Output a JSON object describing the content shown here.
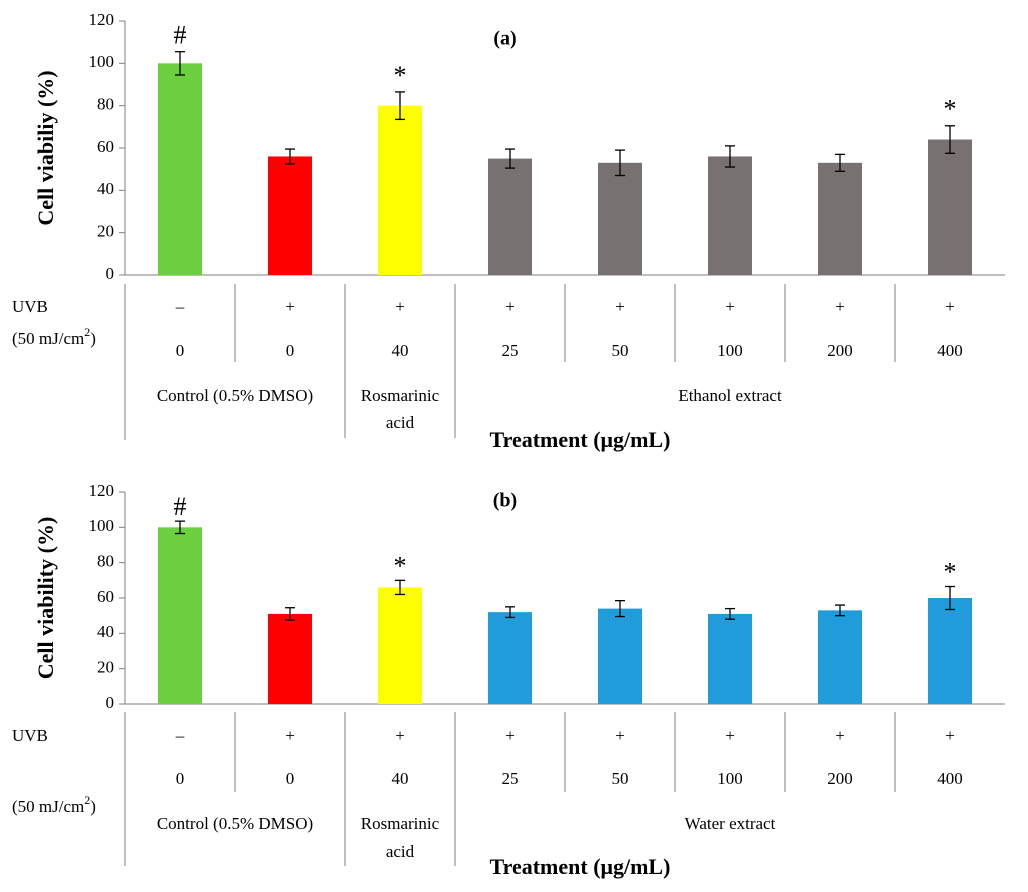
{
  "chart_data": [
    {
      "type": "bar",
      "title": "(a)",
      "ylabel": "Cell viabiliy (%)",
      "xlabel": "Treatment (μg/mL)",
      "ylim": [
        0,
        120
      ],
      "yticks": [
        "0",
        "20",
        "40",
        "60",
        "80",
        "100",
        "120"
      ],
      "row_label_uvb": "UVB",
      "row_label_dose": "(50 mJ/cm",
      "row_label_dose_sup": "2",
      "row_label_dose_end": ")",
      "uvb": [
        "–",
        "+",
        "+",
        "+",
        "+",
        "+",
        "+",
        "+"
      ],
      "concentrations": [
        "0",
        "0",
        "40",
        "25",
        "50",
        "100",
        "200",
        "400"
      ],
      "values": [
        100,
        56,
        80,
        55,
        53,
        56,
        53,
        64
      ],
      "errors": [
        5.5,
        3.5,
        6.5,
        4.5,
        6,
        5,
        4,
        6.5
      ],
      "significance": [
        "#",
        "",
        "*",
        "",
        "",
        "",
        "",
        "*"
      ],
      "colors": [
        "#6ccf3f",
        "#ff0000",
        "#ffff00",
        "#777171",
        "#777171",
        "#777171",
        "#777171",
        "#777171"
      ],
      "groups": [
        {
          "label": "Control (0.5% DMSO)"
        },
        {
          "label": "Rosmarinic acid",
          "lines": [
            "Rosmarinic",
            "acid"
          ]
        },
        {
          "label": "Ethanol extract"
        }
      ]
    },
    {
      "type": "bar",
      "title": "(b)",
      "ylabel": "Cell viability (%)",
      "xlabel": "Treatment (μg/mL)",
      "ylim": [
        0,
        120
      ],
      "yticks": [
        "0",
        "20",
        "40",
        "60",
        "80",
        "100",
        "120"
      ],
      "row_label_uvb": "UVB",
      "row_label_dose": "(50 mJ/cm",
      "row_label_dose_sup": "2",
      "row_label_dose_end": ")",
      "uvb": [
        "–",
        "+",
        "+",
        "+",
        "+",
        "+",
        "+",
        "+"
      ],
      "concentrations": [
        "0",
        "0",
        "40",
        "25",
        "50",
        "100",
        "200",
        "400"
      ],
      "values": [
        100,
        51,
        66,
        52,
        54,
        51,
        53,
        60
      ],
      "errors": [
        3.5,
        3.5,
        4,
        3,
        4.5,
        3,
        3,
        6.5
      ],
      "significance": [
        "#",
        "",
        "*",
        "",
        "",
        "",
        "",
        "*"
      ],
      "colors": [
        "#6ccf3f",
        "#ff0000",
        "#ffff00",
        "#1f9cd9",
        "#1f9cd9",
        "#1f9cd9",
        "#1f9cd9",
        "#1f9cd9"
      ],
      "groups": [
        {
          "label": "Control (0.5% DMSO)"
        },
        {
          "label": "Rosmarinic acid",
          "lines": [
            "Rosmarinic",
            "acid"
          ]
        },
        {
          "label": "Water extract"
        }
      ]
    }
  ]
}
